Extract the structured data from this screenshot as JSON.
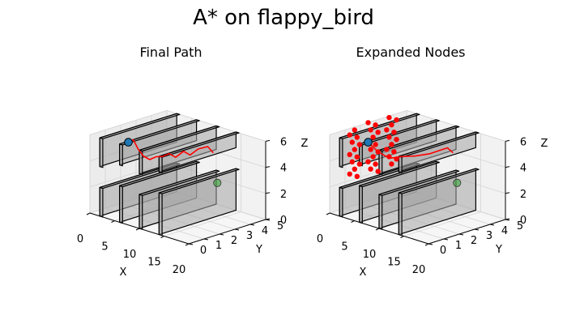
{
  "title": "A* on flappy_bird",
  "chart_data": [
    {
      "type": "3d-line",
      "title": "Final Path",
      "xlabel": "X",
      "ylabel": "Y",
      "zlabel": "Z",
      "xlim": [
        0,
        20
      ],
      "ylim": [
        0,
        5
      ],
      "zlim": [
        0,
        6
      ],
      "xticks": [
        "0",
        "5",
        "10",
        "15",
        "20"
      ],
      "yticks": [
        "0",
        "1",
        "2",
        "3",
        "4",
        "5"
      ],
      "zticks": [
        "0",
        "2",
        "4",
        "6"
      ],
      "grid": true,
      "obstacle_color": "#a6a6a6",
      "path_color": "#ff0000",
      "start_color": "#1f77b4",
      "goal_color": "#2ca02c",
      "obstacles": [
        {
          "x": 2,
          "y": [
            0,
            5
          ],
          "z": [
            0,
            2.2
          ]
        },
        {
          "x": 2,
          "y": [
            0,
            5
          ],
          "z": [
            3.8,
            6
          ]
        },
        {
          "x": 6,
          "y": [
            0,
            5
          ],
          "z": [
            0,
            2.8
          ]
        },
        {
          "x": 6,
          "y": [
            0,
            5
          ],
          "z": [
            4.4,
            6
          ]
        },
        {
          "x": 10,
          "y": [
            0,
            5
          ],
          "z": [
            0,
            2.6
          ]
        },
        {
          "x": 10,
          "y": [
            0,
            5
          ],
          "z": [
            4.2,
            6
          ]
        },
        {
          "x": 14,
          "y": [
            0,
            5
          ],
          "z": [
            0,
            3.2
          ]
        },
        {
          "x": 14,
          "y": [
            0,
            5
          ],
          "z": [
            4.8,
            6
          ]
        }
      ],
      "start": {
        "x": 0,
        "y": 2.5,
        "z": 4.5
      },
      "goal": {
        "x": 18,
        "y": 2.5,
        "z": 3.5
      },
      "path": [
        {
          "x": 0,
          "y": 2.5,
          "z": 4.5
        },
        {
          "x": 1,
          "y": 2.5,
          "z": 4.8
        },
        {
          "x": 2,
          "y": 2.5,
          "z": 4.2
        },
        {
          "x": 3,
          "y": 2.5,
          "z": 3.8
        },
        {
          "x": 4,
          "y": 2.6,
          "z": 3.6
        },
        {
          "x": 5,
          "y": 2.7,
          "z": 3.9
        },
        {
          "x": 6,
          "y": 2.8,
          "z": 4.0
        },
        {
          "x": 7,
          "y": 2.9,
          "z": 4.3
        },
        {
          "x": 8,
          "y": 3.0,
          "z": 4.1
        },
        {
          "x": 9,
          "y": 3.2,
          "z": 4.6
        },
        {
          "x": 10,
          "y": 3.3,
          "z": 4.4
        },
        {
          "x": 11,
          "y": 3.5,
          "z": 4.9
        },
        {
          "x": 12,
          "y": 3.8,
          "z": 5.1
        },
        {
          "x": 12.5,
          "y": 4.0,
          "z": 4.6
        }
      ]
    },
    {
      "type": "3d-scatter",
      "title": "Expanded Nodes",
      "xlabel": "X",
      "ylabel": "Y",
      "zlabel": "Z",
      "xlim": [
        0,
        20
      ],
      "ylim": [
        0,
        5
      ],
      "zlim": [
        0,
        6
      ],
      "xticks": [
        "0",
        "5",
        "10",
        "15",
        "20"
      ],
      "yticks": [
        "0",
        "1",
        "2",
        "3",
        "4",
        "5"
      ],
      "zticks": [
        "0",
        "2",
        "4",
        "6"
      ],
      "grid": true,
      "obstacle_color": "#a6a6a6",
      "node_color": "#ff0000",
      "start_color": "#1f77b4",
      "goal_color": "#2ca02c",
      "obstacles": [
        {
          "x": 2,
          "y": [
            0,
            5
          ],
          "z": [
            0,
            2.2
          ]
        },
        {
          "x": 2,
          "y": [
            0,
            5
          ],
          "z": [
            3.8,
            6
          ]
        },
        {
          "x": 6,
          "y": [
            0,
            5
          ],
          "z": [
            0,
            2.8
          ]
        },
        {
          "x": 6,
          "y": [
            0,
            5
          ],
          "z": [
            4.4,
            6
          ]
        },
        {
          "x": 10,
          "y": [
            0,
            5
          ],
          "z": [
            0,
            2.6
          ]
        },
        {
          "x": 10,
          "y": [
            0,
            5
          ],
          "z": [
            4.2,
            6
          ]
        },
        {
          "x": 14,
          "y": [
            0,
            5
          ],
          "z": [
            0,
            3.2
          ]
        },
        {
          "x": 14,
          "y": [
            0,
            5
          ],
          "z": [
            4.8,
            6
          ]
        }
      ],
      "start": {
        "x": 0,
        "y": 2.5,
        "z": 4.5
      },
      "goal": {
        "x": 18,
        "y": 2.5,
        "z": 3.5
      },
      "nodes_cluster": {
        "x": [
          0,
          2
        ],
        "y": [
          0,
          5
        ],
        "z": [
          2.5,
          6
        ]
      },
      "path": [
        {
          "x": 0,
          "y": 2.5,
          "z": 4.5
        },
        {
          "x": 2,
          "y": 2.5,
          "z": 4.0
        },
        {
          "x": 4,
          "y": 2.6,
          "z": 3.7
        },
        {
          "x": 6,
          "y": 2.8,
          "z": 4.0
        },
        {
          "x": 8,
          "y": 3.0,
          "z": 4.2
        },
        {
          "x": 10,
          "y": 3.3,
          "z": 4.5
        },
        {
          "x": 12,
          "y": 3.8,
          "z": 5.0
        },
        {
          "x": 12.5,
          "y": 4.0,
          "z": 4.6
        }
      ]
    }
  ]
}
